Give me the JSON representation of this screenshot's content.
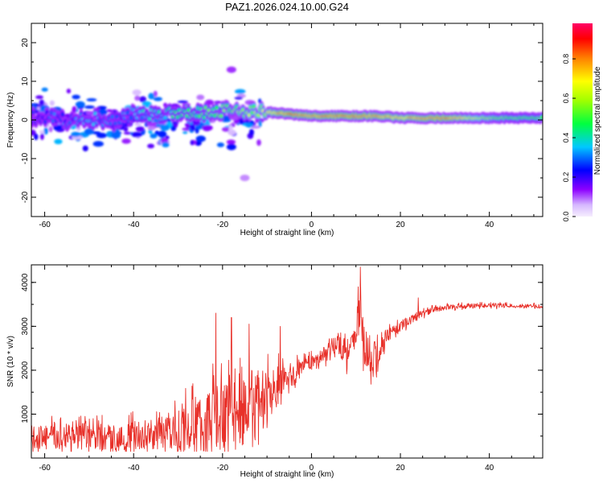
{
  "title": "PAZ1.2026.024.10.00.G24",
  "chart_data": [
    {
      "type": "heatmap",
      "name": "spectrogram",
      "xlabel": "Height of straight line (km)",
      "ylabel": "Frequency (Hz)",
      "xlim": [
        -63,
        52
      ],
      "ylim": [
        -25,
        25
      ],
      "xticks": [
        -60,
        -40,
        -20,
        0,
        20,
        40
      ],
      "yticks": [
        -20,
        -10,
        0,
        10,
        20
      ],
      "colorbar": {
        "label": "Normalized spectral amplitude",
        "range": [
          0,
          0.98
        ],
        "ticks": [
          0.0,
          0.2,
          0.4,
          0.6,
          0.8
        ],
        "tick_labels": [
          "0.0",
          "0.2",
          "0.4",
          "0.6",
          "0.8"
        ]
      },
      "ridge": {
        "description": "dominant frequency track",
        "x": [
          -63,
          -58,
          -54,
          -50,
          -45,
          -40,
          -35,
          -30,
          -25,
          -20,
          -15,
          -10,
          -5,
          0,
          5,
          10,
          15,
          20,
          25,
          30,
          35,
          40,
          45,
          52
        ],
        "frequency": [
          0.5,
          1.0,
          -0.5,
          0.5,
          -0.5,
          1.5,
          1.5,
          2.0,
          2.0,
          2.5,
          2.5,
          2.0,
          1.5,
          1.0,
          1.0,
          1.0,
          1.0,
          0.5,
          0.5,
          0.5,
          0.5,
          0.5,
          0.5,
          0.5
        ],
        "amplitude": [
          0.25,
          0.3,
          0.3,
          0.35,
          0.3,
          0.35,
          0.4,
          0.45,
          0.5,
          0.55,
          0.6,
          0.7,
          0.85,
          0.8,
          0.85,
          0.85,
          0.8,
          0.75,
          0.8,
          0.85,
          0.7,
          0.6,
          0.55,
          0.55
        ]
      },
      "blobs": [
        {
          "x": -60,
          "f": 3,
          "a": 0.3
        },
        {
          "x": -57,
          "f": -2,
          "a": 0.25
        },
        {
          "x": -52,
          "f": 4,
          "a": 0.3
        },
        {
          "x": -50,
          "f": -3,
          "a": 0.3
        },
        {
          "x": -47,
          "f": 2,
          "a": 0.28
        },
        {
          "x": -44,
          "f": -4,
          "a": 0.3
        },
        {
          "x": -41,
          "f": 3,
          "a": 0.35
        },
        {
          "x": -37,
          "f": 4,
          "a": 0.35
        },
        {
          "x": -33,
          "f": -2,
          "a": 0.32
        },
        {
          "x": -28,
          "f": 3,
          "a": 0.4
        },
        {
          "x": -24,
          "f": 0,
          "a": 0.35
        },
        {
          "x": -18,
          "f": -7,
          "a": 0.25
        },
        {
          "x": -18,
          "f": 13,
          "a": 0.12
        },
        {
          "x": -15,
          "f": -15,
          "a": 0.08
        }
      ]
    },
    {
      "type": "line",
      "name": "snr",
      "xlabel": "Height of straight line (km)",
      "ylabel": "SNR (10 * v/v)",
      "xlim": [
        -63,
        52
      ],
      "ylim": [
        0,
        4400
      ],
      "xticks": [
        -60,
        -40,
        -20,
        0,
        20,
        40
      ],
      "yticks": [
        1000,
        2000,
        3000,
        4000
      ],
      "color": "#e8312a",
      "envelope": {
        "description": "approximate trend of the SNR trace",
        "x": [
          -63,
          -55,
          -45,
          -35,
          -28,
          -22,
          -18,
          -14,
          -10,
          -6,
          -2,
          2,
          6,
          8,
          10,
          11,
          12,
          14,
          16,
          18,
          20,
          24,
          28,
          32,
          40,
          52
        ],
        "mean": [
          450,
          500,
          450,
          550,
          700,
          900,
          1000,
          1100,
          1300,
          1700,
          2100,
          2300,
          2600,
          2500,
          2700,
          3400,
          2500,
          2100,
          2600,
          2900,
          3000,
          3250,
          3400,
          3450,
          3480,
          3450
        ],
        "spread": [
          400,
          450,
          450,
          500,
          800,
          1100,
          1200,
          1100,
          900,
          600,
          250,
          200,
          400,
          550,
          350,
          900,
          600,
          500,
          300,
          200,
          150,
          120,
          90,
          80,
          70,
          70
        ]
      },
      "spikes": [
        {
          "x": 11.0,
          "y": 4350
        },
        {
          "x": 10.5,
          "y": 3900
        },
        {
          "x": -21.5,
          "y": 3300
        },
        {
          "x": -18.0,
          "y": 3200
        },
        {
          "x": -14.0,
          "y": 3050
        },
        {
          "x": -7.0,
          "y": 3000
        },
        {
          "x": 24.0,
          "y": 3650
        }
      ]
    }
  ]
}
